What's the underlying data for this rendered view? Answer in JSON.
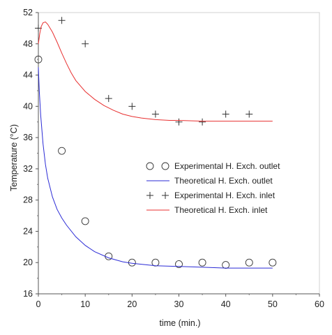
{
  "chart_data": {
    "type": "scatter",
    "title": "",
    "xlabel": "time (min.)",
    "ylabel": "Temperature (°C)",
    "xlim": [
      0,
      60
    ],
    "ylim": [
      16,
      52
    ],
    "xticks": [
      0,
      10,
      20,
      30,
      40,
      50,
      60
    ],
    "yticks": [
      16,
      20,
      24,
      28,
      32,
      36,
      40,
      44,
      48,
      52
    ],
    "grid": false,
    "legend_position": "center-right",
    "series": [
      {
        "name": "Experimental H. Exch. outlet",
        "kind": "points",
        "marker": "circle",
        "color": "#333333",
        "x": [
          0,
          5,
          10,
          15,
          20,
          25,
          30,
          35,
          40,
          45,
          50
        ],
        "y": [
          46.0,
          34.3,
          25.3,
          20.8,
          20.0,
          20.0,
          19.8,
          20.0,
          19.7,
          20.0,
          20.0
        ]
      },
      {
        "name": "Theoretical H. Exch. outlet",
        "kind": "line",
        "color": "#2b2bd6",
        "x": [
          0,
          0.2,
          0.5,
          1,
          1.5,
          2,
          3,
          4,
          5,
          6,
          8,
          10,
          12,
          15,
          18,
          20,
          25,
          30,
          35,
          40,
          45,
          50
        ],
        "y": [
          45.0,
          42.0,
          38.8,
          35.2,
          32.6,
          30.8,
          28.4,
          26.8,
          25.7,
          24.8,
          23.3,
          22.2,
          21.4,
          20.6,
          20.1,
          19.9,
          19.6,
          19.5,
          19.4,
          19.3,
          19.3,
          19.3
        ]
      },
      {
        "name": "Experimental H. Exch. inlet",
        "kind": "points",
        "marker": "plus",
        "color": "#333333",
        "x": [
          0,
          5,
          10,
          15,
          20,
          25,
          30,
          35,
          40,
          45
        ],
        "y": [
          50.0,
          51.0,
          48.0,
          41.0,
          40.0,
          39.0,
          38.0,
          38.0,
          39.0,
          39.0
        ]
      },
      {
        "name": "Theoretical H. Exch. inlet",
        "kind": "line",
        "color": "#e83030",
        "x": [
          0,
          0.3,
          0.6,
          1,
          1.5,
          2,
          3,
          4,
          5,
          6,
          7,
          8,
          10,
          12,
          14,
          16,
          18,
          20,
          22,
          25,
          28,
          30,
          35,
          40,
          45,
          50
        ],
        "y": [
          48.0,
          49.3,
          50.2,
          50.7,
          50.8,
          50.5,
          49.5,
          48.2,
          46.8,
          45.5,
          44.3,
          43.3,
          41.9,
          40.9,
          40.1,
          39.5,
          39.0,
          38.7,
          38.5,
          38.3,
          38.2,
          38.2,
          38.1,
          38.1,
          38.1,
          38.1
        ]
      }
    ]
  }
}
